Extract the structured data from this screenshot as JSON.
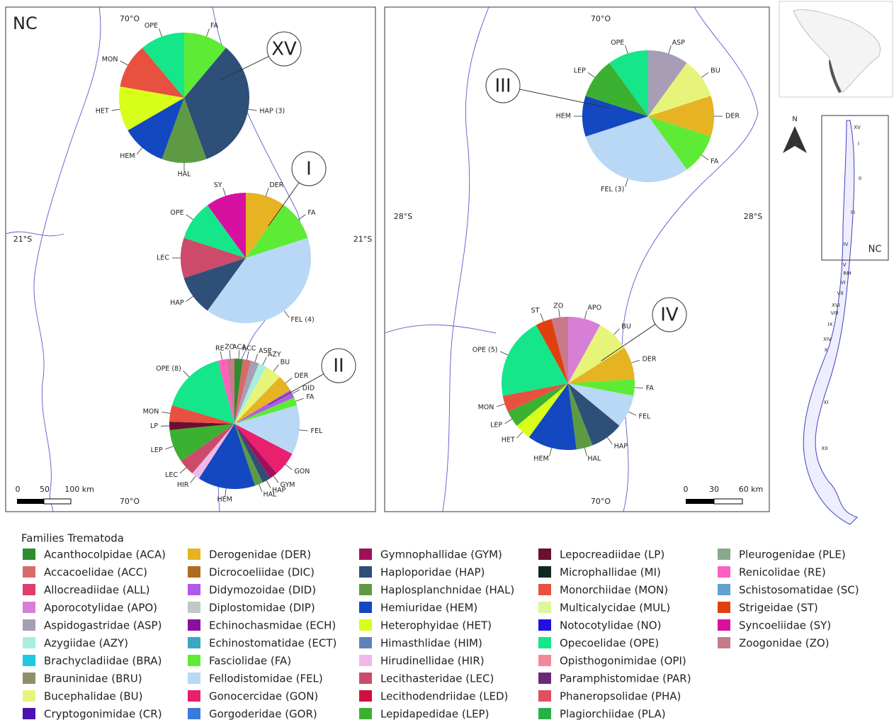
{
  "panels": [
    {
      "label": "NC",
      "coords": [
        "70°O",
        "70°O",
        "21°S",
        "21°S"
      ],
      "scale": [
        "0",
        "50",
        "100 km"
      ],
      "pies": [
        {
          "region": "XV",
          "slices": [
            {
              "label": "FA",
              "value": 1,
              "color": "#5eeb35"
            },
            {
              "label": "HAP (3)",
              "value": 3,
              "color": "#2d4f78"
            },
            {
              "label": "HAL",
              "value": 1,
              "color": "#5e9a44"
            },
            {
              "label": "HEM",
              "value": 1,
              "color": "#1448c0"
            },
            {
              "label": "HET",
              "value": 1,
              "color": "#d8ff1a"
            },
            {
              "label": "MON",
              "value": 1,
              "color": "#e85040"
            },
            {
              "label": "OPE",
              "value": 1,
              "color": "#15e68a"
            }
          ]
        },
        {
          "region": "I",
          "slices": [
            {
              "label": "DER",
              "value": 1,
              "color": "#e6b422"
            },
            {
              "label": "FA",
              "value": 1,
              "color": "#5eeb35"
            },
            {
              "label": "FEL (4)",
              "value": 4,
              "color": "#b8d8f5"
            },
            {
              "label": "HAP",
              "value": 1,
              "color": "#2d4f78"
            },
            {
              "label": "LEC",
              "value": 1,
              "color": "#cc4a6a"
            },
            {
              "label": "OPE",
              "value": 1,
              "color": "#15e68a"
            },
            {
              "label": "SY",
              "value": 1,
              "color": "#d810a0"
            }
          ]
        },
        {
          "region": "II",
          "slices": [
            {
              "label": "ACA",
              "value": 1,
              "color": "#2e8b2e"
            },
            {
              "label": "ACC",
              "value": 1,
              "color": "#d96a6a"
            },
            {
              "label": "ASP",
              "value": 1,
              "color": "#a79eb5"
            },
            {
              "label": "AZY",
              "value": 1,
              "color": "#a8ede0"
            },
            {
              "label": "BU",
              "value": 2,
              "color": "#e6f57a"
            },
            {
              "label": "DER",
              "value": 2,
              "color": "#e6b422"
            },
            {
              "label": "DID",
              "value": 1,
              "color": "#b05ae8"
            },
            {
              "label": "FA",
              "value": 1,
              "color": "#5eeb35"
            },
            {
              "label": "FEL",
              "value": 6,
              "color": "#b8d8f5"
            },
            {
              "label": "GON",
              "value": 3,
              "color": "#e8206e"
            },
            {
              "label": "GYM",
              "value": 1,
              "color": "#a0105a"
            },
            {
              "label": "HAP",
              "value": 1,
              "color": "#2d4f78"
            },
            {
              "label": "HAL",
              "value": 1,
              "color": "#5e9a44"
            },
            {
              "label": "HEM",
              "value": 7,
              "color": "#1448c0"
            },
            {
              "label": "HIR",
              "value": 1,
              "color": "#f0b8e8"
            },
            {
              "label": "LEC",
              "value": 2,
              "color": "#cc4a6a"
            },
            {
              "label": "LEP",
              "value": 4,
              "color": "#3cb030"
            },
            {
              "label": "LP",
              "value": 1,
              "color": "#6a1030"
            },
            {
              "label": "MON",
              "value": 2,
              "color": "#e85040"
            },
            {
              "label": "OPE (8)",
              "value": 8,
              "color": "#15e68a"
            },
            {
              "label": "RE",
              "value": 1,
              "color": "#ff60c0"
            },
            {
              "label": "ZO",
              "value": 1,
              "color": "#c87a8a"
            }
          ]
        }
      ]
    },
    {
      "label": "",
      "coords": [
        "70°O",
        "70°O",
        "28°S",
        "28°S"
      ],
      "scale": [
        "0",
        "30",
        "60 km"
      ],
      "pies": [
        {
          "region": "III",
          "slices": [
            {
              "label": "ASP",
              "value": 1,
              "color": "#a79eb5"
            },
            {
              "label": "BU",
              "value": 1,
              "color": "#e6f57a"
            },
            {
              "label": "DER",
              "value": 1,
              "color": "#e6b422"
            },
            {
              "label": "FA",
              "value": 1,
              "color": "#5eeb35"
            },
            {
              "label": "FEL (3)",
              "value": 3,
              "color": "#b8d8f5"
            },
            {
              "label": "HEM",
              "value": 1,
              "color": "#1448c0"
            },
            {
              "label": "LEP",
              "value": 1,
              "color": "#3cb030"
            },
            {
              "label": "OPE",
              "value": 1,
              "color": "#15e68a"
            }
          ]
        },
        {
          "region": "IV",
          "slices": [
            {
              "label": "APO",
              "value": 2,
              "color": "#d77fd6"
            },
            {
              "label": "BU",
              "value": 2,
              "color": "#e6f57a"
            },
            {
              "label": "DER",
              "value": 2,
              "color": "#e6b422"
            },
            {
              "label": "FA",
              "value": 1,
              "color": "#5eeb35"
            },
            {
              "label": "FEL",
              "value": 2,
              "color": "#b8d8f5"
            },
            {
              "label": "HAP",
              "value": 2,
              "color": "#2d4f78"
            },
            {
              "label": "HAL",
              "value": 1,
              "color": "#5e9a44"
            },
            {
              "label": "HEM",
              "value": 3,
              "color": "#1448c0"
            },
            {
              "label": "HET",
              "value": 1,
              "color": "#d8ff1a"
            },
            {
              "label": "LEP",
              "value": 1,
              "color": "#3cb030"
            },
            {
              "label": "MON",
              "value": 1,
              "color": "#e85040"
            },
            {
              "label": "OPE (5)",
              "value": 5,
              "color": "#15e68a"
            },
            {
              "label": "ST",
              "value": 1,
              "color": "#e04010"
            },
            {
              "label": "ZO",
              "value": 1,
              "color": "#c87a8a"
            }
          ]
        }
      ]
    }
  ],
  "inset": {
    "north": "N",
    "box_label": "NC",
    "regions": [
      "XV",
      "I",
      "II",
      "III",
      "IV",
      "V",
      "RM",
      "VI",
      "VII",
      "XVI",
      "VIII",
      "IX",
      "XIV",
      "X",
      "XI",
      "XII"
    ]
  },
  "legend": {
    "title": "Families Trematoda",
    "items": [
      {
        "label": "Acanthocolpidae (ACA)",
        "color": "#2e8b2e"
      },
      {
        "label": "Accacoelidae (ACC)",
        "color": "#d96a6a"
      },
      {
        "label": "Allocreadiidae (ALL)",
        "color": "#e03c6e"
      },
      {
        "label": "Aporocotylidae (APO)",
        "color": "#d77fd6"
      },
      {
        "label": "Aspidogastridae (ASP)",
        "color": "#a79eb5"
      },
      {
        "label": "Azygiidae (AZY)",
        "color": "#a8ede0"
      },
      {
        "label": "Brachycladiidae (BRA)",
        "color": "#1ec8e0"
      },
      {
        "label": "Brauninidae (BRU)",
        "color": "#8f8f6a"
      },
      {
        "label": "Bucephalidae (BU)",
        "color": "#e6f57a"
      },
      {
        "label": "Cryptogonimidae (CR)",
        "color": "#4a12b0"
      },
      {
        "label": "Derogenidae (DER)",
        "color": "#e6b422"
      },
      {
        "label": "Dicrocoeliidae (DIC)",
        "color": "#b06a22"
      },
      {
        "label": "Didymozoidae (DID)",
        "color": "#b05ae8"
      },
      {
        "label": "Diplostomidae (DIP)",
        "color": "#c0c8c6"
      },
      {
        "label": "Echinochasmidae (ECH)",
        "color": "#8a0fa0"
      },
      {
        "label": "Echinostomatidae (ECT)",
        "color": "#3aa8c0"
      },
      {
        "label": "Fasciolidae (FA)",
        "color": "#5eeb35"
      },
      {
        "label": "Fellodistomidae (FEL)",
        "color": "#b8d8f5"
      },
      {
        "label": "Gonocercidae (GON)",
        "color": "#e8206e"
      },
      {
        "label": "Gorgoderidae (GOR)",
        "color": "#3a7ad8"
      },
      {
        "label": "Gymnophallidae (GYM)",
        "color": "#a0105a"
      },
      {
        "label": "Haploporidae (HAP)",
        "color": "#2d4f78"
      },
      {
        "label": "Haplosplanchnidae (HAL)",
        "color": "#5e9a44"
      },
      {
        "label": "Hemiuridae (HEM)",
        "color": "#1448c0"
      },
      {
        "label": "Heterophyidae (HET)",
        "color": "#d8ff1a"
      },
      {
        "label": "Himasthlidae (HIM)",
        "color": "#5e82b8"
      },
      {
        "label": "Hirudinellidae (HIR)",
        "color": "#f0b8e8"
      },
      {
        "label": "Lecithasteridae (LEC)",
        "color": "#cc4a6a"
      },
      {
        "label": "Lecithodendriidae (LED)",
        "color": "#d01040"
      },
      {
        "label": "Lepidapedidae (LEP)",
        "color": "#3cb030"
      },
      {
        "label": "Lepocreadiidae (LP)",
        "color": "#6a1030"
      },
      {
        "label": "Microphallidae (MI)",
        "color": "#0e2a20"
      },
      {
        "label": "Monorchiidae (MON)",
        "color": "#e85040"
      },
      {
        "label": "Multicalycidae (MUL)",
        "color": "#dff59a"
      },
      {
        "label": "Notocotylidae (NO)",
        "color": "#2010e0"
      },
      {
        "label": "Opecoelidae (OPE)",
        "color": "#15e68a"
      },
      {
        "label": "Opisthogonimidae (OPI)",
        "color": "#f08a9a"
      },
      {
        "label": "Paramphistomidae (PAR)",
        "color": "#6a2a78"
      },
      {
        "label": "Phaneropsolidae (PHA)",
        "color": "#e05060"
      },
      {
        "label": "Plagiorchiidae (PLA)",
        "color": "#28b048"
      },
      {
        "label": "Pleurogenidae (PLE)",
        "color": "#8aa88a"
      },
      {
        "label": "Renicolidae (RE)",
        "color": "#ff60c0"
      },
      {
        "label": "Schistosomatidae (SC)",
        "color": "#64a0d0"
      },
      {
        "label": "Strigeidae (ST)",
        "color": "#e04010"
      },
      {
        "label": "Syncoeliidae (SY)",
        "color": "#d810a0"
      },
      {
        "label": "Zoogonidae (ZO)",
        "color": "#c87a8a"
      }
    ]
  }
}
